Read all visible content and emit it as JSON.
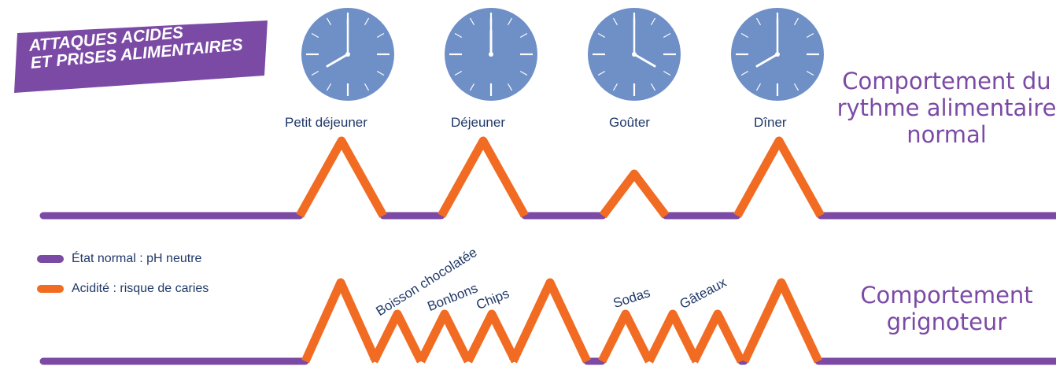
{
  "title": {
    "line1": "ATTAQUES ACIDES",
    "line2": "ET PRISES ALIMENTAIRES"
  },
  "meals": [
    {
      "label": "Petit déjeuner",
      "time": "8:00"
    },
    {
      "label": "Déjeuner",
      "time": "12:00"
    },
    {
      "label": "Goûter",
      "time": "16:00"
    },
    {
      "label": "Dîner",
      "time": "20:00"
    }
  ],
  "behaviors": {
    "normal": "Comportement du rythme alimentaire normal",
    "snacker": "Comportement grignoteur"
  },
  "snacks": [
    "Boisson chocolatée",
    "Bonbons",
    "Chips",
    "Sodas",
    "Gâteaux"
  ],
  "legend": [
    {
      "label": "État normal : pH neutre",
      "color": "#7b4aa5"
    },
    {
      "label": "Acidité : risque de caries",
      "color": "#f26b22"
    }
  ],
  "colors": {
    "neutral": "#7b4aa5",
    "acid": "#f26b22",
    "clock_face": "#6f8fc7",
    "clock_marks": "#ffffff",
    "badge": "#7b4aa5",
    "text": "#1f3868"
  }
}
